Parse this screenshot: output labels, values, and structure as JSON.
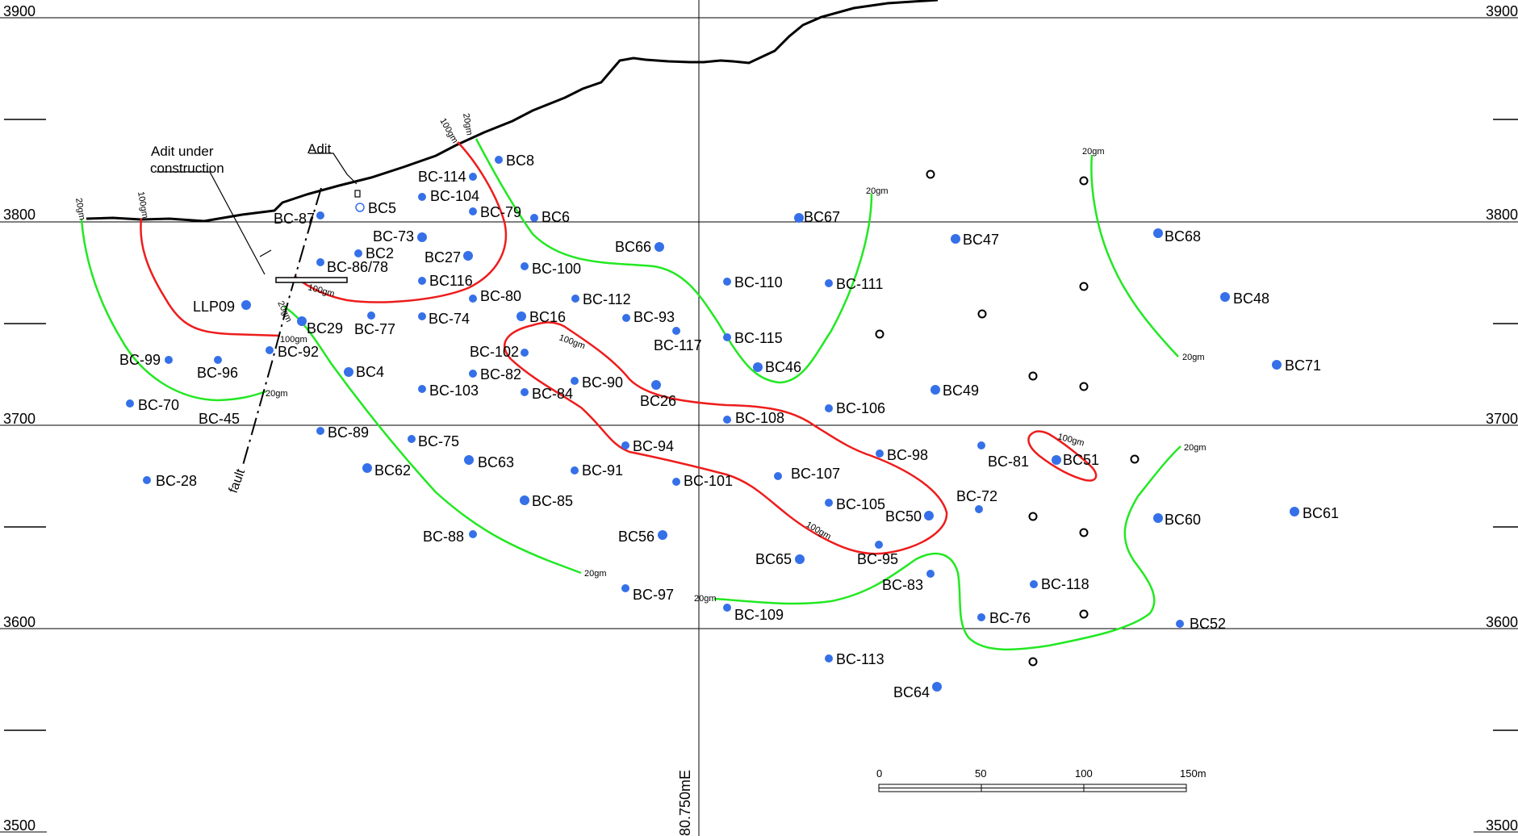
{
  "elevation_labels": [
    "3900",
    "3800",
    "3700",
    "3600",
    "3500"
  ],
  "easting_label": "80.750mE",
  "annotations": {
    "adit_under_construction_line1": "Adit under",
    "adit_under_construction_line2": "construction",
    "adit": "Adit",
    "fault": "fault"
  },
  "contour_labels": {
    "g20": "20gm",
    "g100": "100gm"
  },
  "scale_bar": {
    "ticks": [
      "0",
      "50",
      "100",
      "150m"
    ]
  },
  "colors": {
    "hole": "#3570e8",
    "grade_100": "#ee1c1c",
    "grade_20": "#22e822",
    "topography": "#000000"
  },
  "holes": [
    "BC8",
    "BC-114",
    "BC-104",
    "BC-79",
    "BC6",
    "BC5",
    "BC-87",
    "BC-73",
    "BC2",
    "BC-86/78",
    "BC27",
    "BC-100",
    "BC116",
    "BC-80",
    "BC-112",
    "BC16",
    "BC-93",
    "BC-74",
    "BC-77",
    "LLP09",
    "BC29",
    "BC-117",
    "BC-102",
    "BC-92",
    "BC-99",
    "BC-96",
    "BC4",
    "BC-82",
    "BC-90",
    "BC-103",
    "BC-84",
    "BC26",
    "BC-70",
    "BC-45",
    "BC-89",
    "BC-75",
    "BC-94",
    "BC-108",
    "BC63",
    "BC62",
    "BC-91",
    "BC-101",
    "BC-28",
    "BC-85",
    "BC-88",
    "BC56",
    "BC-97",
    "BC66",
    "BC67",
    "BC-110",
    "BC-111",
    "BC-115",
    "BC46",
    "BC-106",
    "BC-107",
    "BC-105",
    "BC50",
    "BC-95",
    "BC65",
    "BC-83",
    "BC-109",
    "BC-113",
    "BC64",
    "BC47",
    "BC68",
    "BC48",
    "BC71",
    "BC49",
    "BC-98",
    "BC-81",
    "BC51",
    "BC-72",
    "BC60",
    "BC61",
    "BC-118",
    "BC-76",
    "BC52"
  ]
}
